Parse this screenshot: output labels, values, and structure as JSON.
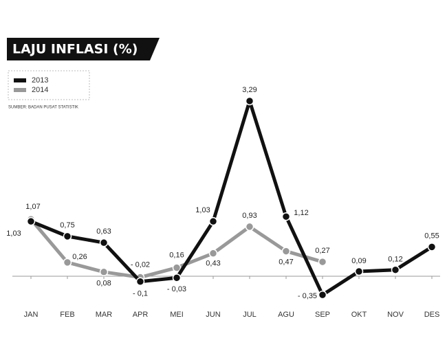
{
  "chart_data": {
    "type": "line",
    "title": "LAJU INFLASI (%)",
    "source": "SUMBER: BADAN PUSAT STATISTIK",
    "categories": [
      "JAN",
      "FEB",
      "MAR",
      "APR",
      "MEI",
      "JUN",
      "JUL",
      "AGU",
      "SEP",
      "OKT",
      "NOV",
      "DES"
    ],
    "series": [
      {
        "name": "2013",
        "color": "#111111",
        "values": [
          1.03,
          0.75,
          0.63,
          -0.1,
          -0.03,
          1.03,
          3.29,
          1.12,
          -0.35,
          0.09,
          0.12,
          0.55
        ],
        "value_labels": [
          "1,03",
          "0,75",
          "0,63",
          "- 0,1",
          "- 0,03",
          "1,03",
          "3,29",
          "1,12",
          "- 0,35",
          "0,09",
          "0,12",
          "0,55"
        ]
      },
      {
        "name": "2014",
        "color": "#999999",
        "values": [
          1.07,
          0.26,
          0.08,
          -0.02,
          0.16,
          0.43,
          0.93,
          0.47,
          0.27,
          null,
          null,
          null
        ],
        "value_labels": [
          "1,07",
          "0,26",
          "0,08",
          "- 0,02",
          "0,16",
          "0,43",
          "0,93",
          "0,47",
          "0,27",
          null,
          null,
          null
        ]
      }
    ],
    "ylim": [
      -0.6,
      3.4
    ],
    "legend": "upper left"
  }
}
